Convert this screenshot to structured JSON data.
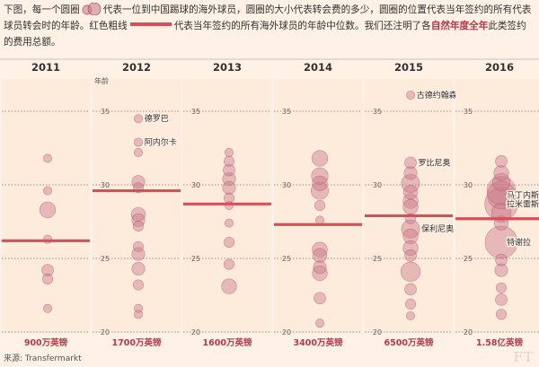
{
  "intro": {
    "p1": "下图，每一个圆圈",
    "p2": "代表一位到中国踢球的海外球员，圆圈的大小代表转会费的多少，圆圈的位置代表当年签约的所有代表球员转会时的年龄。红色粗线",
    "p3": "代表当年签约的所有海外球员的年龄中位数。我们还注明了各",
    "p4": "自然年度全年",
    "p5": "此类签约的费用总额。"
  },
  "source": "来源: Transfermarkt",
  "logo": "FT",
  "colors": {
    "background": "#fff1e5",
    "bubble_fill": "#c9798a",
    "bubble_stroke": "#a84e62",
    "median_line": "#d5515a",
    "total_text": "#b23a48",
    "panel_bg": "#fdebdc",
    "grid": "#7f7670"
  },
  "chart_data": {
    "type": "scatter",
    "ylabel": "年龄",
    "ylim": [
      20,
      37
    ],
    "yticks": [
      20,
      25,
      30,
      35
    ],
    "grid": true,
    "panels": [
      {
        "year": "2011",
        "median": 26.2,
        "total": "900万英镑",
        "points": [
          {
            "age": 31.8,
            "size": 1
          },
          {
            "age": 29.6,
            "size": 1
          },
          {
            "age": 28.3,
            "size": 7
          },
          {
            "age": 26.3,
            "size": 1
          },
          {
            "age": 24.2,
            "size": 3
          },
          {
            "age": 23.6,
            "size": 2
          },
          {
            "age": 21.6,
            "size": 1
          }
        ]
      },
      {
        "year": "2012",
        "median": 29.6,
        "total": "1700万英镑",
        "points": [
          {
            "age": 34.5,
            "size": 1,
            "label": "德罗巴"
          },
          {
            "age": 32.9,
            "size": 1,
            "label": "阿内尔卡"
          },
          {
            "age": 32.2,
            "size": 1
          },
          {
            "age": 30.2,
            "size": 4
          },
          {
            "age": 29.8,
            "size": 2
          },
          {
            "age": 28.0,
            "size": 5
          },
          {
            "age": 27.6,
            "size": 4
          },
          {
            "age": 27.2,
            "size": 2
          },
          {
            "age": 25.8,
            "size": 2
          },
          {
            "age": 25.3,
            "size": 4
          },
          {
            "age": 24.3,
            "size": 4
          },
          {
            "age": 23.2,
            "size": 2
          },
          {
            "age": 21.6,
            "size": 1
          },
          {
            "age": 21.2,
            "size": 1
          }
        ]
      },
      {
        "year": "2013",
        "median": 28.7,
        "total": "1600万英镑",
        "points": [
          {
            "age": 32.2,
            "size": 1
          },
          {
            "age": 31.6,
            "size": 2
          },
          {
            "age": 31.0,
            "size": 3
          },
          {
            "age": 30.4,
            "size": 4
          },
          {
            "age": 29.8,
            "size": 4
          },
          {
            "age": 29.1,
            "size": 2
          },
          {
            "age": 28.6,
            "size": 1
          },
          {
            "age": 27.4,
            "size": 1
          },
          {
            "age": 26.1,
            "size": 2
          },
          {
            "age": 24.6,
            "size": 2
          },
          {
            "age": 23.1,
            "size": 6
          }
        ]
      },
      {
        "year": "2014",
        "median": 27.3,
        "total": "3400万英镑",
        "points": [
          {
            "age": 31.8,
            "size": 7
          },
          {
            "age": 30.6,
            "size": 8
          },
          {
            "age": 30.1,
            "size": 6
          },
          {
            "age": 29.6,
            "size": 9
          },
          {
            "age": 28.6,
            "size": 2
          },
          {
            "age": 27.6,
            "size": 1
          },
          {
            "age": 25.6,
            "size": 6
          },
          {
            "age": 25.2,
            "size": 5
          },
          {
            "age": 24.4,
            "size": 4
          },
          {
            "age": 24.0,
            "size": 6
          },
          {
            "age": 22.3,
            "size": 3
          },
          {
            "age": 20.6,
            "size": 1
          }
        ]
      },
      {
        "year": "2015",
        "median": 27.9,
        "total": "6500万英镑",
        "points": [
          {
            "age": 36.1,
            "size": 1,
            "label": "古德约翰森"
          },
          {
            "age": 31.5,
            "size": 3,
            "label": "罗比尼奥"
          },
          {
            "age": 30.8,
            "size": 4
          },
          {
            "age": 30.1,
            "size": 10
          },
          {
            "age": 29.5,
            "size": 5
          },
          {
            "age": 28.9,
            "size": 6
          },
          {
            "age": 28.5,
            "size": 6
          },
          {
            "age": 27.7,
            "size": 2
          },
          {
            "age": 27.0,
            "size": 10,
            "label": "保利尼奥"
          },
          {
            "age": 26.5,
            "size": 6
          },
          {
            "age": 25.7,
            "size": 6
          },
          {
            "age": 25.2,
            "size": 3
          },
          {
            "age": 24.1,
            "size": 12
          },
          {
            "age": 22.9,
            "size": 3
          },
          {
            "age": 21.9,
            "size": 2
          },
          {
            "age": 21.1,
            "size": 1
          }
        ]
      },
      {
        "year": "2016",
        "median": 27.7,
        "total": "1.58亿英镑",
        "points": [
          {
            "age": 31.6,
            "size": 3
          },
          {
            "age": 30.8,
            "size": 6
          },
          {
            "age": 30.2,
            "size": 9
          },
          {
            "age": 29.6,
            "size": 30
          },
          {
            "age": 29.3,
            "size": 28,
            "label": "马丁内斯"
          },
          {
            "age": 28.7,
            "size": 42,
            "label": "拉米雷斯"
          },
          {
            "age": 28.1,
            "size": 12
          },
          {
            "age": 27.4,
            "size": 5
          },
          {
            "age": 26.1,
            "size": 40,
            "label": "特谢拉"
          },
          {
            "age": 24.9,
            "size": 3
          },
          {
            "age": 24.2,
            "size": 4
          },
          {
            "age": 23.0,
            "size": 2
          },
          {
            "age": 22.2,
            "size": 3
          },
          {
            "age": 21.2,
            "size": 2
          }
        ]
      }
    ]
  }
}
